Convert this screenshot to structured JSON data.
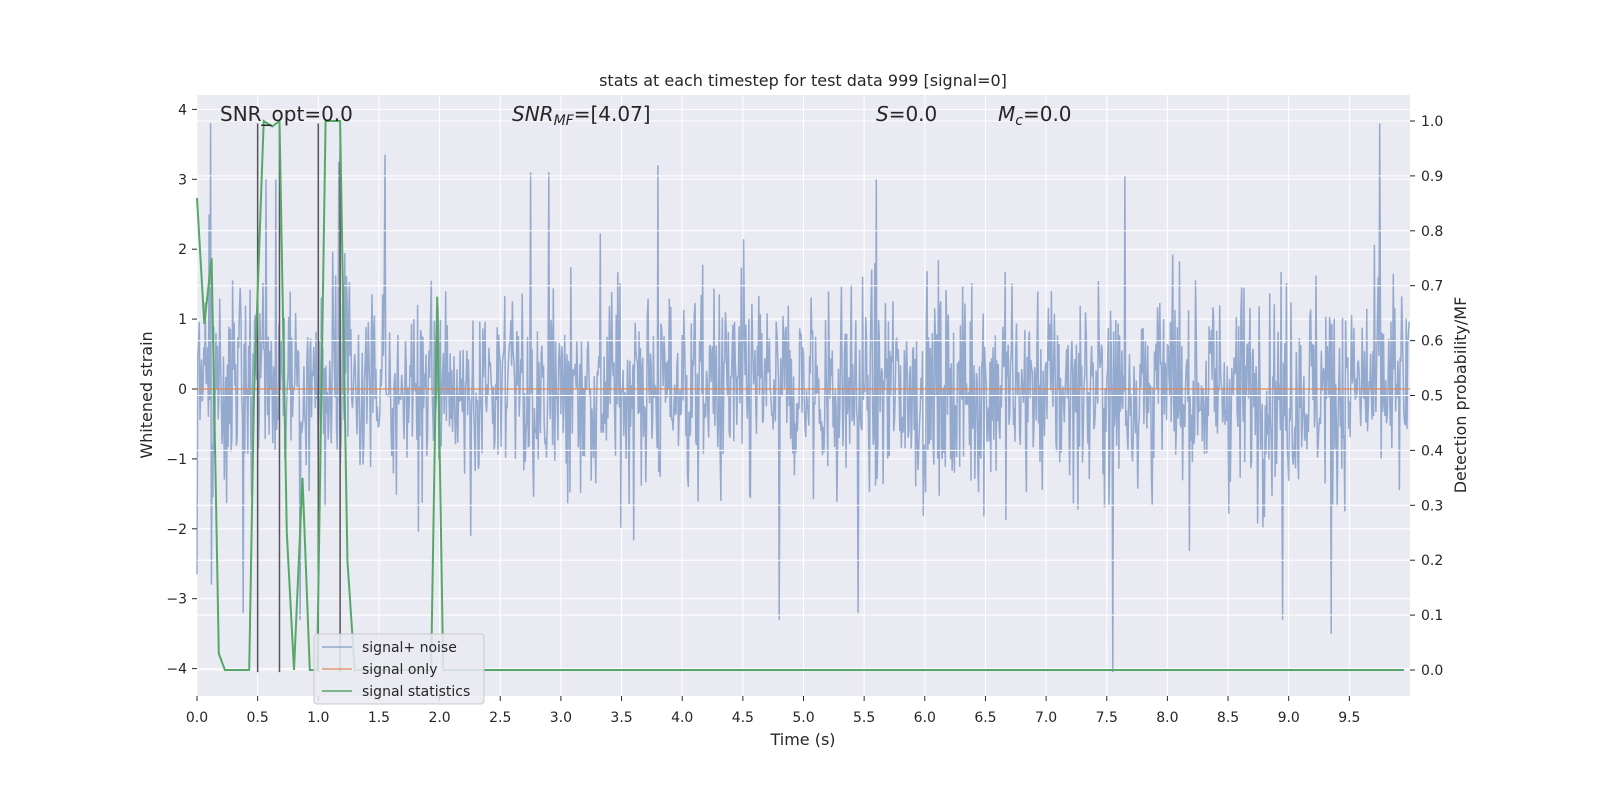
{
  "chart_data": {
    "type": "line",
    "title": "stats at each timestep for test data 999 [signal=0]",
    "xlabel": "Time (s)",
    "ylabel": "Whitened strain",
    "y2label": "Detection probability/MF",
    "xlim": [
      0.0,
      10.0
    ],
    "ylim": [
      -4.3,
      4.2
    ],
    "y2lim": [
      -0.045,
      1.045
    ],
    "x_ticks": [
      "0.0",
      "0.5",
      "1.0",
      "1.5",
      "2.0",
      "2.5",
      "3.0",
      "3.5",
      "4.0",
      "4.5",
      "5.0",
      "5.5",
      "6.0",
      "6.5",
      "7.0",
      "7.5",
      "8.0",
      "8.5",
      "9.0",
      "9.5"
    ],
    "y_ticks": [
      "−4",
      "−3",
      "−2",
      "−1",
      "0",
      "1",
      "2",
      "3",
      "4"
    ],
    "y2_ticks": [
      "0.0",
      "0.1",
      "0.2",
      "0.3",
      "0.4",
      "0.5",
      "0.6",
      "0.7",
      "0.8",
      "0.9",
      "1.0"
    ],
    "grid": true,
    "legend_position": "lower-left",
    "annotations": {
      "snr_opt": "SNR_opt=0.0",
      "snr_mf_var": "SNR",
      "snr_mf_sub": "MF",
      "snr_mf_val": "=[4.07]",
      "s_var": "S",
      "s_val": "=0.0",
      "mc_var": "M",
      "mc_sub": "c",
      "mc_val": "=0.0"
    },
    "series": [
      {
        "name": "signal+ noise",
        "color": "#4c72b0",
        "style": "dense noise, approx ±1.5 typical, peaks to ±3.8",
        "peaks": [
          {
            "x": 0.0,
            "y": -2.65
          },
          {
            "x": 0.1,
            "y": 2.5
          },
          {
            "x": 0.11,
            "y": 3.8
          },
          {
            "x": 0.12,
            "y": -2.8
          },
          {
            "x": 0.38,
            "y": -3.2
          },
          {
            "x": 0.57,
            "y": 3.0
          },
          {
            "x": 0.65,
            "y": 3.0
          },
          {
            "x": 0.85,
            "y": -3.3
          },
          {
            "x": 1.17,
            "y": 3.25
          },
          {
            "x": 1.55,
            "y": 3.35
          },
          {
            "x": 2.75,
            "y": 3.1
          },
          {
            "x": 2.9,
            "y": 3.1
          },
          {
            "x": 3.8,
            "y": 3.2
          },
          {
            "x": 4.8,
            "y": -3.3
          },
          {
            "x": 5.6,
            "y": 3.0
          },
          {
            "x": 5.45,
            "y": -3.2
          },
          {
            "x": 7.55,
            "y": -4.05
          },
          {
            "x": 7.65,
            "y": 3.05
          },
          {
            "x": 8.95,
            "y": -3.3
          },
          {
            "x": 9.35,
            "y": -3.5
          },
          {
            "x": 9.75,
            "y": 3.8
          }
        ]
      },
      {
        "name": "signal only",
        "color": "#dd8452",
        "x": [
          0.0,
          10.0
        ],
        "y": [
          0.0,
          0.0
        ]
      },
      {
        "name": "signal statistics",
        "color": "#55a868",
        "axis": "right",
        "x": [
          0.0,
          0.06,
          0.12,
          0.18,
          0.23,
          0.3,
          0.37,
          0.43,
          0.47,
          0.55,
          0.62,
          0.68,
          0.74,
          0.8,
          0.87,
          0.93,
          0.99,
          1.06,
          1.12,
          1.18,
          1.24,
          1.3,
          1.37,
          1.93,
          1.98,
          2.03,
          2.08,
          9.95
        ],
        "y": [
          0.86,
          0.63,
          0.75,
          0.03,
          0.0,
          0.0,
          0.0,
          0.0,
          0.5,
          1.0,
          0.99,
          1.0,
          0.25,
          0.0,
          0.35,
          0.0,
          0.0,
          1.0,
          1.0,
          1.0,
          0.2,
          0.0,
          0.0,
          0.0,
          0.68,
          0.0,
          0.0,
          0.0
        ]
      }
    ],
    "vertical_lines": {
      "color": "#555555",
      "x": [
        0.5,
        0.68,
        1.0,
        1.18
      ],
      "ymax": 3.8
    }
  }
}
